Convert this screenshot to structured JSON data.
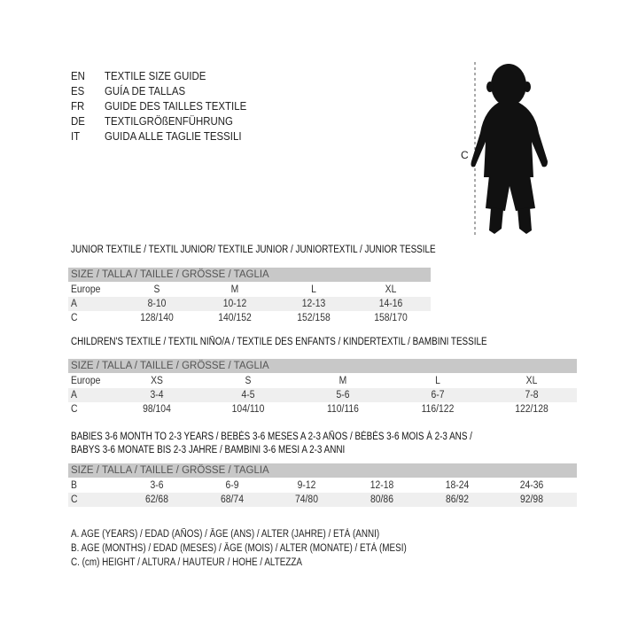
{
  "languages": [
    {
      "code": "EN",
      "text": "TEXTILE SIZE GUIDE"
    },
    {
      "code": "ES",
      "text": "GUÍA DE TALLAS"
    },
    {
      "code": "FR",
      "text": "GUIDE DES TAILLES TEXTILE"
    },
    {
      "code": "DE",
      "text": "TEXTILGRÖßENFÜHRUNG"
    },
    {
      "code": "IT",
      "text": "GUIDA ALLE TAGLIE TESSILI"
    }
  ],
  "figure": {
    "label": "C"
  },
  "junior": {
    "title": "JUNIOR TEXTILE / TEXTIL JUNIOR/ TEXTILE JUNIOR / JUNIORTEXTIL / JUNIOR TESSILE",
    "header": "SIZE / TALLA / TAILLE / GRÖSSE / TAGLIA",
    "rows": [
      {
        "label": "Europe",
        "values": [
          "S",
          "M",
          "L",
          "XL"
        ]
      },
      {
        "label": "A",
        "values": [
          "8-10",
          "10-12",
          "12-13",
          "14-16"
        ]
      },
      {
        "label": "C",
        "values": [
          "128/140",
          "140/152",
          "152/158",
          "158/170"
        ]
      }
    ]
  },
  "children": {
    "title": "CHILDREN'S TEXTILE / TEXTIL NIÑO/A / TEXTILE DES ENFANTS / KINDERTEXTIL / BAMBINI TESSILE",
    "header": "SIZE / TALLA / TAILLE / GRÖSSE / TAGLIA",
    "rows": [
      {
        "label": "Europe",
        "values": [
          "XS",
          "S",
          "M",
          "L",
          "XL"
        ]
      },
      {
        "label": "A",
        "values": [
          "3-4",
          "4-5",
          "5-6",
          "6-7",
          "7-8"
        ]
      },
      {
        "label": "C",
        "values": [
          "98/104",
          "104/110",
          "110/116",
          "116/122",
          "122/128"
        ]
      }
    ]
  },
  "babies": {
    "title_line1": "BABIES 3-6 MONTH TO 2-3 YEARS / BEBÉS 3-6 MESES A 2-3 AÑOS / BÉBÉS 3-6 MOIS À 2-3 ANS /",
    "title_line2": "BABYS 3-6 MONATE BIS 2-3 JAHRE / BAMBINI 3-6 MESI A 2-3 ANNI",
    "header": "SIZE / TALLA / TAILLE / GRÖSSE / TAGLIA",
    "rows": [
      {
        "label": "B",
        "values": [
          "3-6",
          "6-9",
          "9-12",
          "12-18",
          "18-24",
          "24-36"
        ]
      },
      {
        "label": "C",
        "values": [
          "62/68",
          "68/74",
          "74/80",
          "80/86",
          "86/92",
          "92/98"
        ]
      }
    ]
  },
  "legend": [
    "A. AGE (YEARS) / EDAD (AÑOS) / ÂGE (ANS) / ALTER (JAHRE) / ETÀ (ANNI)",
    "B. AGE (MONTHS) / EDAD (MESES) / ÂGE (MOIS) / ALTER (MONATE) / ETÀ (MESI)",
    "C. (cm) HEIGHT / ALTURA / HAUTEUR / HÖHE / ALTEZZA"
  ]
}
